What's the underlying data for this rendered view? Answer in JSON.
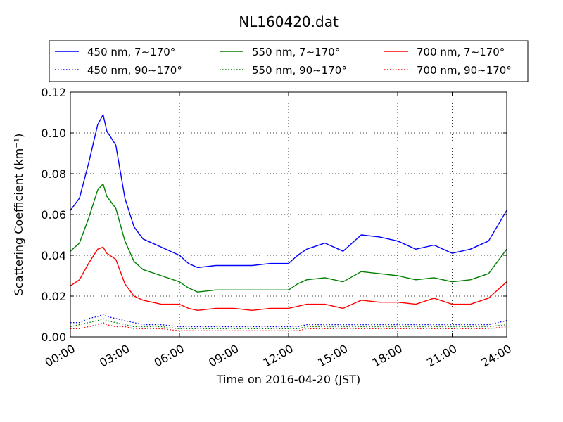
{
  "chart_data": {
    "type": "line",
    "title": "NL160420.dat",
    "xlabel": "Time on 2016-04-20 (JST)",
    "ylabel": "Scattering Coefficient (km⁻¹)",
    "xlim": [
      0,
      24
    ],
    "ylim": [
      0,
      0.12
    ],
    "x_ticks": [
      {
        "value": 0,
        "label": "00:00"
      },
      {
        "value": 3,
        "label": "03:00"
      },
      {
        "value": 6,
        "label": "06:00"
      },
      {
        "value": 9,
        "label": "09:00"
      },
      {
        "value": 12,
        "label": "12:00"
      },
      {
        "value": 15,
        "label": "15:00"
      },
      {
        "value": 18,
        "label": "18:00"
      },
      {
        "value": 21,
        "label": "21:00"
      },
      {
        "value": 24,
        "label": "24:00"
      }
    ],
    "y_ticks": [
      {
        "value": 0,
        "label": "0.00"
      },
      {
        "value": 0.02,
        "label": "0.02"
      },
      {
        "value": 0.04,
        "label": "0.04"
      },
      {
        "value": 0.06,
        "label": "0.06"
      },
      {
        "value": 0.08,
        "label": "0.08"
      },
      {
        "value": 0.1,
        "label": "0.10"
      },
      {
        "value": 0.12,
        "label": "0.12"
      }
    ],
    "grid": true,
    "legend_position": "top",
    "x": [
      0,
      0.5,
      1,
      1.5,
      1.8,
      2,
      2.5,
      3,
      3.5,
      4,
      5,
      6,
      6.5,
      7,
      8,
      9,
      10,
      11,
      12,
      12.5,
      13,
      14,
      15,
      16,
      17,
      18,
      19,
      20,
      21,
      22,
      23,
      24
    ],
    "series": [
      {
        "name": "450 nm, 7∼170°",
        "color": "#0000ff",
        "style": "solid",
        "values": [
          0.062,
          0.068,
          0.085,
          0.104,
          0.109,
          0.101,
          0.094,
          0.068,
          0.054,
          0.048,
          0.044,
          0.04,
          0.036,
          0.034,
          0.035,
          0.035,
          0.035,
          0.036,
          0.036,
          0.04,
          0.043,
          0.046,
          0.042,
          0.05,
          0.049,
          0.047,
          0.043,
          0.045,
          0.041,
          0.043,
          0.047,
          0.062
        ]
      },
      {
        "name": "550 nm, 7∼170°",
        "color": "#008000",
        "style": "solid",
        "values": [
          0.042,
          0.046,
          0.058,
          0.072,
          0.075,
          0.069,
          0.063,
          0.047,
          0.037,
          0.033,
          0.03,
          0.027,
          0.024,
          0.022,
          0.023,
          0.023,
          0.023,
          0.023,
          0.023,
          0.026,
          0.028,
          0.029,
          0.027,
          0.032,
          0.031,
          0.03,
          0.028,
          0.029,
          0.027,
          0.028,
          0.031,
          0.043
        ]
      },
      {
        "name": "700 nm, 7∼170°",
        "color": "#ff0000",
        "style": "solid",
        "values": [
          0.025,
          0.028,
          0.036,
          0.043,
          0.044,
          0.041,
          0.038,
          0.026,
          0.02,
          0.018,
          0.016,
          0.016,
          0.014,
          0.013,
          0.014,
          0.014,
          0.013,
          0.014,
          0.014,
          0.015,
          0.016,
          0.016,
          0.014,
          0.018,
          0.017,
          0.017,
          0.016,
          0.019,
          0.016,
          0.016,
          0.019,
          0.027
        ]
      },
      {
        "name": "450 nm, 90∼170°",
        "color": "#0000ff",
        "style": "dotted",
        "values": [
          0.007,
          0.007,
          0.009,
          0.01,
          0.011,
          0.01,
          0.009,
          0.008,
          0.007,
          0.006,
          0.006,
          0.005,
          0.005,
          0.005,
          0.005,
          0.005,
          0.005,
          0.005,
          0.005,
          0.005,
          0.006,
          0.006,
          0.006,
          0.006,
          0.006,
          0.006,
          0.006,
          0.006,
          0.006,
          0.006,
          0.006,
          0.008
        ]
      },
      {
        "name": "550 nm, 90∼170°",
        "color": "#008000",
        "style": "dotted",
        "values": [
          0.005,
          0.006,
          0.007,
          0.008,
          0.009,
          0.008,
          0.007,
          0.006,
          0.005,
          0.005,
          0.005,
          0.004,
          0.004,
          0.004,
          0.004,
          0.004,
          0.004,
          0.004,
          0.004,
          0.004,
          0.005,
          0.005,
          0.005,
          0.005,
          0.005,
          0.005,
          0.005,
          0.005,
          0.005,
          0.005,
          0.005,
          0.006
        ]
      },
      {
        "name": "700 nm, 90∼170°",
        "color": "#ff0000",
        "style": "dotted",
        "values": [
          0.004,
          0.004,
          0.005,
          0.006,
          0.007,
          0.006,
          0.005,
          0.005,
          0.004,
          0.004,
          0.004,
          0.003,
          0.003,
          0.003,
          0.003,
          0.003,
          0.003,
          0.003,
          0.003,
          0.003,
          0.004,
          0.004,
          0.004,
          0.004,
          0.004,
          0.004,
          0.004,
          0.004,
          0.004,
          0.004,
          0.004,
          0.005
        ]
      }
    ]
  }
}
